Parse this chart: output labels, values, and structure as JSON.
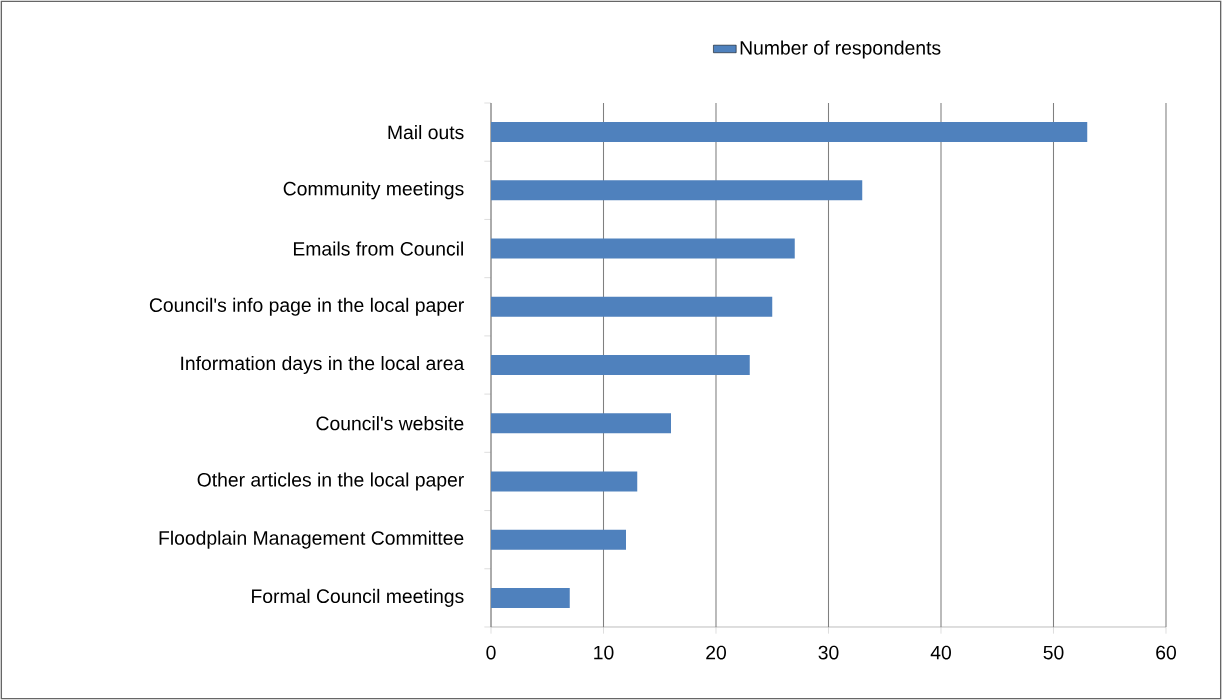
{
  "chart_data": {
    "type": "bar",
    "orientation": "horizontal",
    "categories": [
      "Mail outs",
      "Community meetings",
      "Emails from Council",
      "Council's info page in the local paper",
      "Information days in the local area",
      "Council's website",
      "Other articles in the local paper",
      "Floodplain Management Committee",
      "Formal Council meetings"
    ],
    "series": [
      {
        "name": "Number of respondents",
        "color": "#4f81bd",
        "values": [
          53,
          33,
          27,
          25,
          23,
          16,
          13,
          12,
          7
        ]
      }
    ],
    "xlim": [
      0,
      60
    ],
    "xticks": [
      0,
      10,
      20,
      30,
      40,
      50,
      60
    ],
    "grid": "x",
    "legend": "top"
  }
}
